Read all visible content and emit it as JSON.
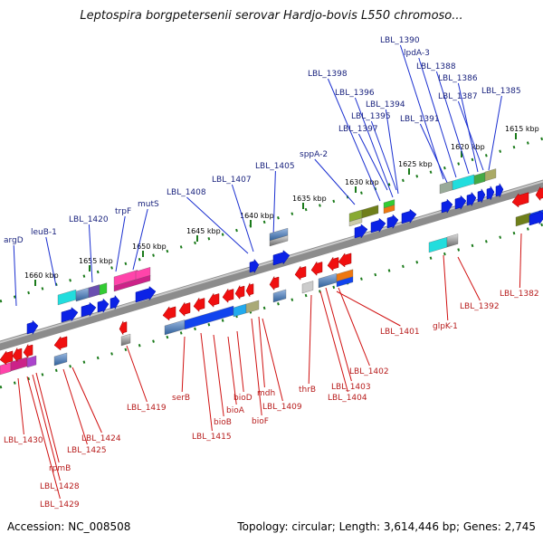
{
  "title": "Leptospira borgpetersenii serovar Hardjo-bovis L550 chromoso...",
  "footer": {
    "accession": "Accession: NC_008508",
    "topology": "Topology: circular; Length: 3,614,446 bp; Genes: 2,745"
  },
  "colors": {
    "backbone": "#8a8a8a",
    "track_dots": "#1a7a1a",
    "forward_gene": "#0022ee",
    "reverse_gene": "#ee1111",
    "forward_label": "#1a237e",
    "reverse_label": "#b71c1c",
    "leader_forward": "#1a2fd0",
    "leader_reverse": "#d01010"
  },
  "ticks": [
    {
      "label": "1615 kbp"
    },
    {
      "label": "1620 kbp"
    },
    {
      "label": "1625 kbp"
    },
    {
      "label": "1630 kbp"
    },
    {
      "label": "1635 kbp"
    },
    {
      "label": "1640 kbp"
    },
    {
      "label": "1645 kbp"
    },
    {
      "label": "1650 kbp"
    },
    {
      "label": "1655 kbp"
    },
    {
      "label": "1660 kbp"
    }
  ],
  "forward_labels": [
    {
      "text": "argD"
    },
    {
      "text": "leuB-1"
    },
    {
      "text": "LBL_1420"
    },
    {
      "text": "trpF"
    },
    {
      "text": "mutS"
    },
    {
      "text": "LBL_1408"
    },
    {
      "text": "LBL_1407"
    },
    {
      "text": "LBL_1405"
    },
    {
      "text": "sppA-2"
    },
    {
      "text": "LBL_1398"
    },
    {
      "text": "LBL_1396"
    },
    {
      "text": "LBL_1394"
    },
    {
      "text": "LBL_1395"
    },
    {
      "text": "LBL_1397"
    },
    {
      "text": "LBL_1391"
    },
    {
      "text": "LBL_1390"
    },
    {
      "text": "lpdA-3"
    },
    {
      "text": "LBL_1388"
    },
    {
      "text": "LBL_1386"
    },
    {
      "text": "LBL_1387"
    },
    {
      "text": "LBL_1385"
    }
  ],
  "reverse_labels": [
    {
      "text": "LBL_1430"
    },
    {
      "text": "rpmB"
    },
    {
      "text": "LBL_1428"
    },
    {
      "text": "LBL_1429"
    },
    {
      "text": "LBL_1425"
    },
    {
      "text": "LBL_1424"
    },
    {
      "text": "LBL_1419"
    },
    {
      "text": "serB"
    },
    {
      "text": "LBL_1415"
    },
    {
      "text": "bioB"
    },
    {
      "text": "bioA"
    },
    {
      "text": "bioD"
    },
    {
      "text": "bioF"
    },
    {
      "text": "mdh"
    },
    {
      "text": "LBL_1409"
    },
    {
      "text": "thrB"
    },
    {
      "text": "LBL_1404"
    },
    {
      "text": "LBL_1403"
    },
    {
      "text": "LBL_1402"
    },
    {
      "text": "LBL_1401"
    },
    {
      "text": "glpK-1"
    },
    {
      "text": "LBL_1392"
    },
    {
      "text": "LBL_1382"
    }
  ]
}
